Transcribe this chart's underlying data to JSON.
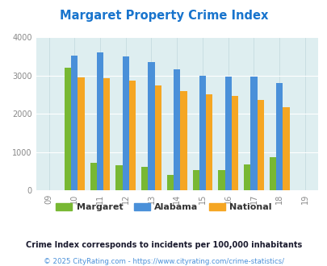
{
  "title": "Margaret Property Crime Index",
  "all_x_labels": [
    "09",
    "10",
    "11",
    "12",
    "13",
    "14",
    "15",
    "16",
    "17",
    "18",
    "19"
  ],
  "data_years": [
    2010,
    2011,
    2012,
    2013,
    2014,
    2015,
    2016,
    2017,
    2018
  ],
  "margaret": [
    3200,
    720,
    650,
    620,
    390,
    530,
    520,
    680,
    870
  ],
  "alabama": [
    3520,
    3600,
    3500,
    3360,
    3160,
    3000,
    2970,
    2970,
    2810
  ],
  "national": [
    2950,
    2920,
    2870,
    2730,
    2600,
    2510,
    2460,
    2370,
    2170
  ],
  "margaret_color": "#78b833",
  "alabama_color": "#4a90d9",
  "national_color": "#f5a623",
  "bg_color": "#deeef0",
  "title_color": "#1874CD",
  "ylim": [
    0,
    4000
  ],
  "yticks": [
    0,
    1000,
    2000,
    3000,
    4000
  ],
  "legend_labels": [
    "Margaret",
    "Alabama",
    "National"
  ],
  "footnote1": "Crime Index corresponds to incidents per 100,000 inhabitants",
  "footnote2": "© 2025 CityRating.com - https://www.cityrating.com/crime-statistics/",
  "footnote1_color": "#1a1a2e",
  "footnote2_color": "#4a90d9"
}
